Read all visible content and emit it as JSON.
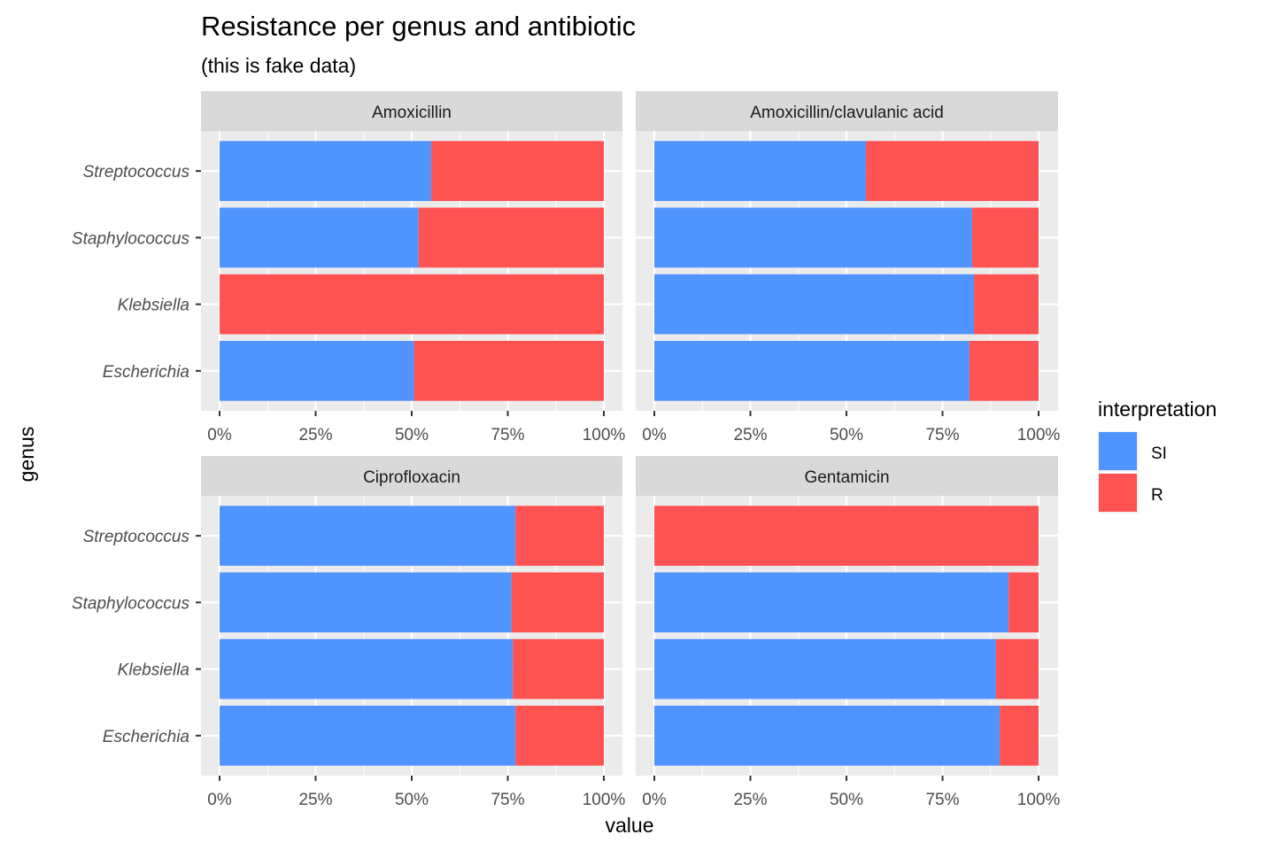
{
  "chart_data": {
    "type": "bar",
    "orientation": "horizontal",
    "stacked": true,
    "title": "Resistance per genus and antibiotic",
    "subtitle": "(this is fake data)",
    "xlabel": "value",
    "ylabel": "genus",
    "xlim": [
      0,
      1
    ],
    "x_ticks": [
      "0%",
      "25%",
      "50%",
      "75%",
      "100%"
    ],
    "grid": true,
    "categories": [
      "Escherichia",
      "Klebsiella",
      "Staphylococcus",
      "Streptococcus"
    ],
    "legend": {
      "title": "interpretation",
      "position": "right",
      "entries": [
        {
          "label": "SI",
          "color": "#5094FF"
        },
        {
          "label": "R",
          "color": "#FF5252"
        }
      ]
    },
    "panels": [
      {
        "title": "Amoxicillin",
        "series": [
          {
            "name": "SI",
            "values": [
              0.506,
              0.0,
              0.518,
              0.551
            ]
          },
          {
            "name": "R",
            "values": [
              0.494,
              1.0,
              0.482,
              0.449
            ]
          }
        ]
      },
      {
        "title": "Amoxicillin/clavulanic acid",
        "series": [
          {
            "name": "SI",
            "values": [
              0.82,
              0.832,
              0.827,
              0.551
            ]
          },
          {
            "name": "R",
            "values": [
              0.18,
              0.168,
              0.173,
              0.449
            ]
          }
        ]
      },
      {
        "title": "Ciprofloxacin",
        "series": [
          {
            "name": "SI",
            "values": [
              0.77,
              0.763,
              0.76,
              0.77
            ]
          },
          {
            "name": "R",
            "values": [
              0.23,
              0.237,
              0.24,
              0.23
            ]
          }
        ]
      },
      {
        "title": "Gentamicin",
        "series": [
          {
            "name": "SI",
            "values": [
              0.899,
              0.889,
              0.922,
              0.0
            ]
          },
          {
            "name": "R",
            "values": [
              0.101,
              0.111,
              0.078,
              1.0
            ]
          }
        ]
      }
    ]
  }
}
